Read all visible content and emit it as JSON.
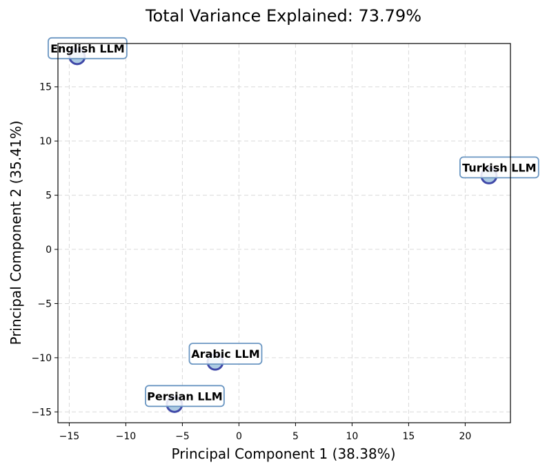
{
  "chart_data": {
    "type": "scatter",
    "title": "Total Variance Explained: 73.79%",
    "xlabel": "Principal Component 1 (38.38%)",
    "ylabel": "Principal Component 2 (35.41%)",
    "xlim": [
      -16,
      24
    ],
    "ylim": [
      -16,
      19
    ],
    "xticks": [
      -15,
      -10,
      -5,
      0,
      5,
      10,
      15,
      20
    ],
    "yticks": [
      -15,
      -10,
      -5,
      0,
      5,
      10,
      15
    ],
    "grid": true,
    "points": [
      {
        "label": "English LLM",
        "x": -14.3,
        "y": 17.8
      },
      {
        "label": "Turkish LLM",
        "x": 22.1,
        "y": 6.8
      },
      {
        "label": "Arabic LLM",
        "x": -2.1,
        "y": -10.4
      },
      {
        "label": "Persian LLM",
        "x": -5.7,
        "y": -14.3
      }
    ],
    "colors": {
      "marker_fill": "#a9c8e0",
      "marker_edge": "#3f48a8",
      "label_box_edge": "#6a96c2",
      "grid": "#d9d9d9"
    }
  }
}
